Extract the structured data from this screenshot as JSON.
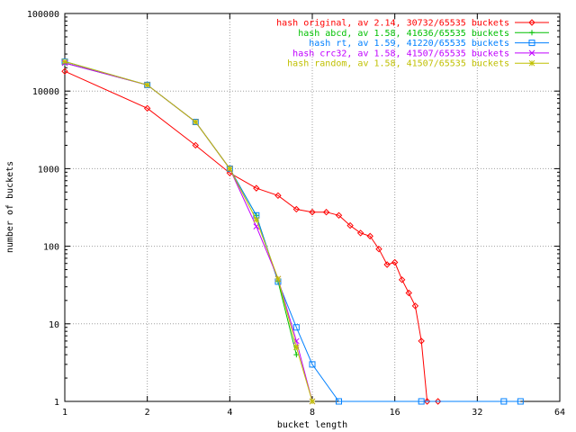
{
  "chart_data": {
    "type": "line",
    "xlabel": "bucket length",
    "ylabel": "number of buckets",
    "x_scale": "log2",
    "y_scale": "log10",
    "xlim": [
      1,
      64
    ],
    "ylim": [
      1,
      100000
    ],
    "grid": true,
    "legend_position": "top-right",
    "x_ticks": [
      {
        "value": 1,
        "label": "1"
      },
      {
        "value": 2,
        "label": "2"
      },
      {
        "value": 4,
        "label": "4"
      },
      {
        "value": 8,
        "label": "8"
      },
      {
        "value": 16,
        "label": "16"
      },
      {
        "value": 32,
        "label": "32"
      },
      {
        "value": 64,
        "label": "64"
      }
    ],
    "y_ticks": [
      {
        "value": 1,
        "label": "1"
      },
      {
        "value": 10,
        "label": "10"
      },
      {
        "value": 100,
        "label": "100"
      },
      {
        "value": 1000,
        "label": "1000"
      },
      {
        "value": 10000,
        "label": "10000"
      },
      {
        "value": 100000,
        "label": "100000"
      }
    ],
    "series": [
      {
        "name": "hash original, av 2.14, 30732/65535 buckets",
        "color": "#ff0000",
        "marker": "diamond",
        "points": [
          [
            1,
            18000
          ],
          [
            2,
            6000
          ],
          [
            3,
            2000
          ],
          [
            4,
            880
          ],
          [
            5,
            560
          ],
          [
            6,
            450
          ],
          [
            7,
            300
          ],
          [
            8,
            275
          ],
          [
            9,
            275
          ],
          [
            10,
            250
          ],
          [
            11,
            185
          ],
          [
            12,
            148
          ],
          [
            13,
            135
          ],
          [
            14,
            92
          ],
          [
            15,
            58
          ],
          [
            16,
            62
          ],
          [
            17,
            37
          ],
          [
            18,
            25
          ],
          [
            19,
            17
          ],
          [
            20,
            6
          ],
          [
            21,
            1
          ],
          [
            23,
            1
          ]
        ]
      },
      {
        "name": "hash abcd, av 1.58, 41636/65535 buckets",
        "color": "#00c000",
        "marker": "plus",
        "points": [
          [
            1,
            23000
          ],
          [
            2,
            12000
          ],
          [
            3,
            4000
          ],
          [
            4,
            1000
          ],
          [
            5,
            250
          ],
          [
            6,
            35
          ],
          [
            7,
            4
          ]
        ]
      },
      {
        "name": "hash rt, av 1.59, 41220/65535 buckets",
        "color": "#0080ff",
        "marker": "square",
        "points": [
          [
            1,
            24000
          ],
          [
            2,
            12000
          ],
          [
            3,
            4000
          ],
          [
            4,
            1000
          ],
          [
            5,
            250
          ],
          [
            6,
            35
          ],
          [
            7,
            9
          ],
          [
            8,
            3
          ],
          [
            10,
            1
          ],
          [
            20,
            1
          ],
          [
            40,
            1
          ],
          [
            46,
            1
          ]
        ]
      },
      {
        "name": "hash crc32, av 1.58, 41507/65535 buckets",
        "color": "#c000ff",
        "marker": "x",
        "points": [
          [
            1,
            23000
          ],
          [
            2,
            12000
          ],
          [
            3,
            4000
          ],
          [
            4,
            1000
          ],
          [
            5,
            180
          ],
          [
            6,
            38
          ],
          [
            7,
            6
          ],
          [
            8,
            1
          ]
        ]
      },
      {
        "name": "hash random, av 1.58, 41507/65535 buckets",
        "color": "#c0c000",
        "marker": "star",
        "points": [
          [
            1,
            24000
          ],
          [
            2,
            12000
          ],
          [
            3,
            4000
          ],
          [
            4,
            1000
          ],
          [
            5,
            220
          ],
          [
            6,
            38
          ],
          [
            7,
            5
          ],
          [
            8,
            1
          ]
        ]
      }
    ]
  }
}
